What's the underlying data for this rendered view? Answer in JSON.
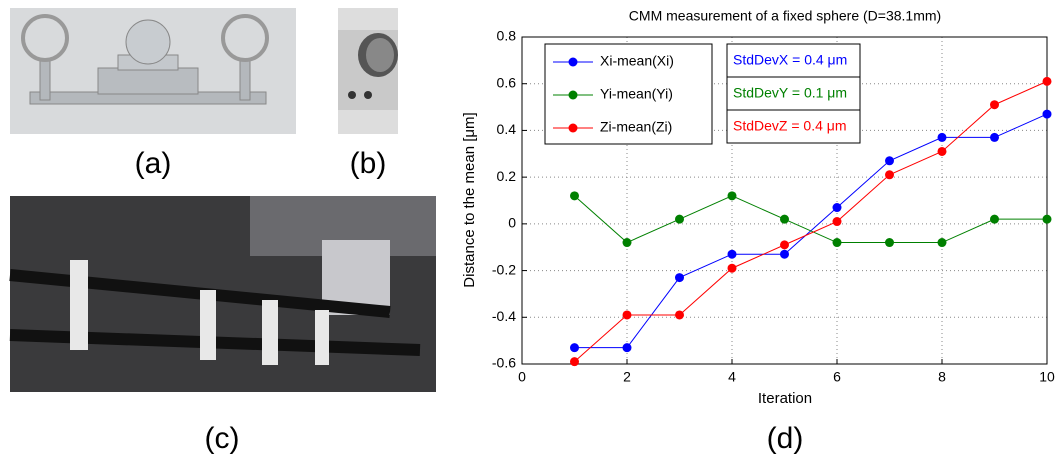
{
  "panel_labels": [
    "(a)",
    "(b)",
    "(c)",
    "(d)"
  ],
  "chart_data": {
    "type": "line",
    "title": "CMM measurement of a fixed sphere (D=38.1mm)",
    "x_label": "Iteration",
    "y_label": "Distance to the mean [μm]",
    "x": [
      1,
      2,
      3,
      4,
      5,
      6,
      7,
      8,
      9,
      10
    ],
    "series": [
      {
        "name": "Xi-mean(Xi)",
        "color": "#0000ff",
        "values": [
          -0.53,
          -0.53,
          -0.23,
          -0.13,
          -0.13,
          0.07,
          0.27,
          0.37,
          0.37,
          0.47
        ]
      },
      {
        "name": "Yi-mean(Yi)",
        "color": "#008000",
        "values": [
          0.12,
          -0.08,
          0.02,
          0.12,
          0.02,
          -0.08,
          -0.08,
          -0.08,
          0.02,
          0.02
        ]
      },
      {
        "name": "Zi-mean(Zi)",
        "color": "#ff0000",
        "values": [
          -0.59,
          -0.39,
          -0.39,
          -0.19,
          -0.09,
          0.01,
          0.21,
          0.31,
          0.51,
          0.61
        ]
      }
    ],
    "annotations": [
      {
        "text": "StdDevX = 0.4 μm",
        "color": "#0000ff"
      },
      {
        "text": "StdDevY = 0.1 μm",
        "color": "#008000"
      },
      {
        "text": "StdDevZ = 0.4 μm",
        "color": "#ff0000"
      }
    ],
    "xlim": [
      0,
      10
    ],
    "xticks": [
      0,
      2,
      4,
      6,
      8,
      10
    ],
    "ylim": [
      -0.6,
      0.8
    ],
    "yticks": [
      -0.6,
      -0.4,
      -0.2,
      0,
      0.2,
      0.4,
      0.6,
      0.8
    ],
    "grid": true
  }
}
